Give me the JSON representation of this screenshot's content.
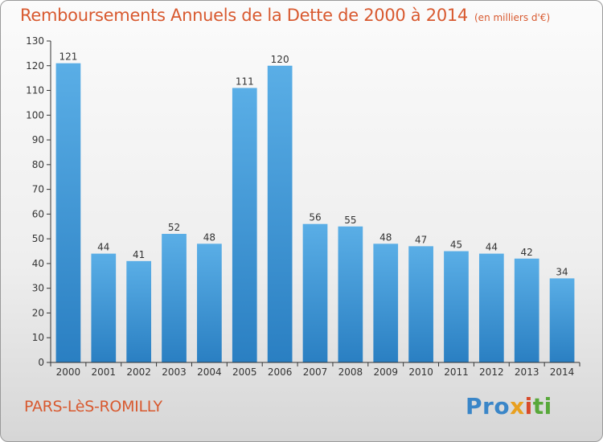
{
  "header": {
    "title": "Remboursements Annuels de la Dette de 2000 à 2014",
    "unit": "(en milliers d'€)"
  },
  "footer": {
    "commune": "PARS-LèS-ROMILLY",
    "logo": {
      "text": "Proxiti",
      "parts": [
        "Pro",
        "x",
        "i",
        "ti"
      ]
    }
  },
  "colors": {
    "title": "#d8592f",
    "bar_top": "#5aaee6",
    "bar_bottom": "#2a7fc2",
    "axis": "#333333"
  },
  "chart_data": {
    "type": "bar",
    "title": "Remboursements Annuels de la Dette de 2000 à 2014",
    "subtitle": "(en milliers d'€)",
    "xlabel": "",
    "ylabel": "",
    "categories": [
      "2000",
      "2001",
      "2002",
      "2003",
      "2004",
      "2005",
      "2006",
      "2007",
      "2008",
      "2009",
      "2010",
      "2011",
      "2012",
      "2013",
      "2014"
    ],
    "values": [
      121,
      44,
      41,
      52,
      48,
      111,
      120,
      56,
      55,
      48,
      47,
      45,
      44,
      42,
      34
    ],
    "ylim": [
      0,
      130
    ],
    "yticks": [
      0,
      10,
      20,
      30,
      40,
      50,
      60,
      70,
      80,
      90,
      100,
      110,
      120,
      130
    ],
    "grid": false,
    "data_labels": true
  }
}
